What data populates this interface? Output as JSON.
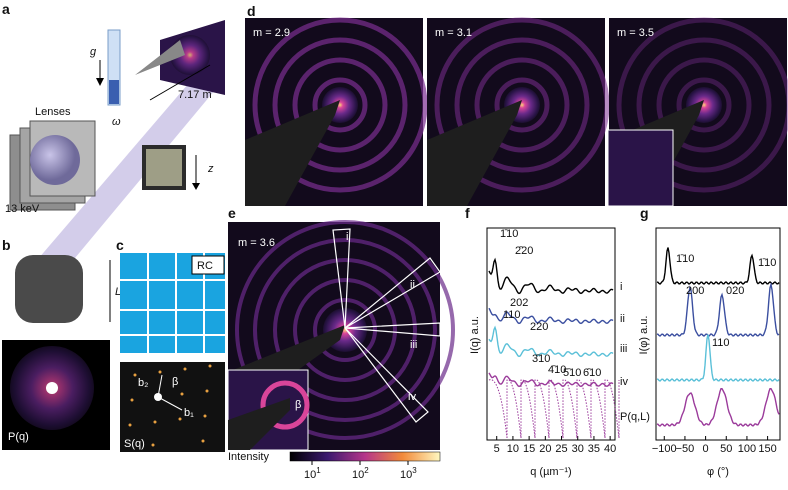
{
  "panels": {
    "a": {
      "label": "a",
      "gravity": "g",
      "lenses": "Lenses",
      "energy": "13 keV",
      "distance": "7.17 m",
      "rotation": "ω",
      "axis": "z"
    },
    "b": {
      "label": "b",
      "size": "L",
      "pattern": "P(q)"
    },
    "c": {
      "label": "c",
      "lattice": "RC",
      "vector2": "b₂",
      "vector1": "b₁",
      "angle": "β",
      "pattern": "S(q)"
    },
    "d": {
      "label": "d",
      "images": [
        "m = 2.9",
        "m = 3.1",
        "m = 3.5"
      ]
    },
    "e": {
      "label": "e",
      "title": "m = 3.6",
      "sectors": [
        "i",
        "ii",
        "iii",
        "iv"
      ],
      "angle": "β",
      "colorbar": {
        "label": "Intensity",
        "ticks": [
          {
            "base": "10",
            "exp": "1"
          },
          {
            "base": "10",
            "exp": "2"
          },
          {
            "base": "10",
            "exp": "3"
          }
        ]
      }
    },
    "f": {
      "label": "f",
      "ylabel": "I(q) a.u.",
      "xlabel": "q (µm⁻¹)",
      "xlim": [
        2,
        41.5
      ],
      "xticks": [
        5,
        10,
        15,
        20,
        25,
        30,
        35,
        40
      ],
      "peaks": [
        "1̄10",
        "2̄20",
        "202",
        "110",
        "220",
        "3̄10",
        "4̄10",
        "5̄10",
        "6̄10"
      ],
      "curves": [
        "i",
        "ii",
        "iii",
        "iv",
        "P(q,L)"
      ]
    },
    "g": {
      "label": "g",
      "ylabel": "I(φ) a.u.",
      "xlabel": "φ (°)",
      "xlim": [
        -120,
        180
      ],
      "xticks": [
        {
          "value": -100,
          "label": "−100"
        },
        {
          "value": -50,
          "label": "−50"
        },
        0,
        50,
        100,
        150
      ],
      "peaks": [
        "1̄10",
        "1̄10",
        "200",
        "020",
        "110"
      ]
    }
  }
}
